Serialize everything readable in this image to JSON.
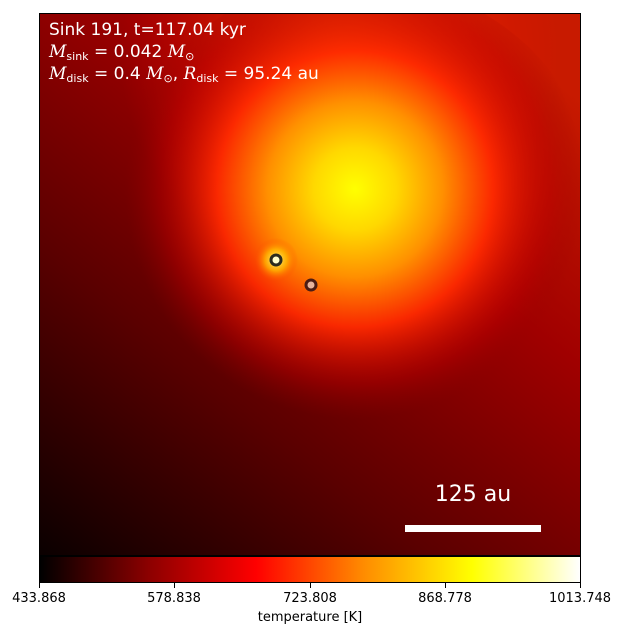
{
  "annotations": {
    "line1": "Sink 191, t=117.04 kyr",
    "msink_value": "0.042",
    "mdisk_value": "0.4",
    "rdisk_value": "95.24",
    "unit_msun": "M",
    "unit_au": "au"
  },
  "scalebar": {
    "label": "125 au"
  },
  "colorbar": {
    "label": "temperature [K]",
    "ticks": [
      "433.868",
      "578.838",
      "723.808",
      "868.778",
      "1013.748"
    ],
    "colors": [
      "#000000",
      "#8b0000",
      "#ff0000",
      "#ff8c00",
      "#ffff00",
      "#ffffff"
    ]
  },
  "sinks": [
    {
      "name": "sink-primary",
      "fill": "#ffffcc",
      "stroke": "#2b2b1e"
    },
    {
      "name": "sink-secondary",
      "fill": "#e7b49c",
      "stroke": "#4b1c14"
    }
  ]
}
